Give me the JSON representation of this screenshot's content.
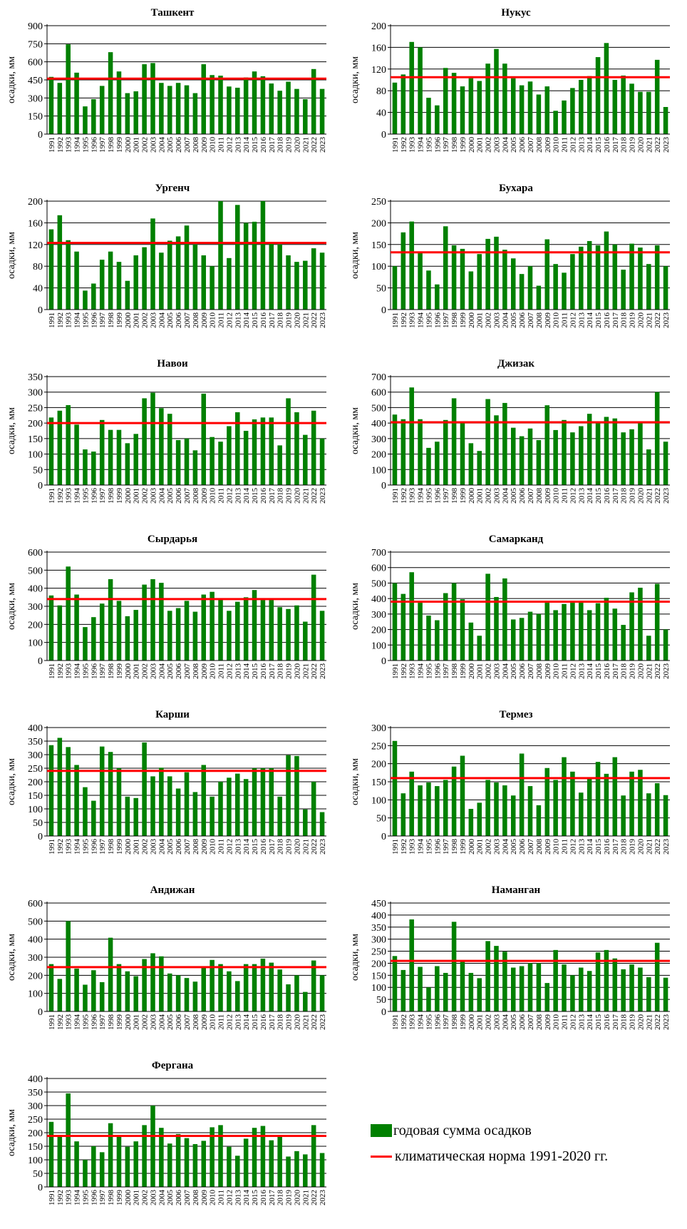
{
  "colors": {
    "bar": "#008000",
    "norm": "#ff0000",
    "grid": "#000000",
    "axis": "#000000"
  },
  "years": [
    "1991",
    "1992",
    "1993",
    "1994",
    "1995",
    "1996",
    "1997",
    "1998",
    "1999",
    "2000",
    "2001",
    "2002",
    "2003",
    "2004",
    "2005",
    "2006",
    "2007",
    "2008",
    "2009",
    "2010",
    "2011",
    "2012",
    "2013",
    "2014",
    "2015",
    "2016",
    "2017",
    "2018",
    "2019",
    "2020",
    "2021",
    "2022",
    "2023"
  ],
  "legend": {
    "bars_label": "годовая сумма осадков",
    "norm_label": "климатическая норма 1991-2020  гг."
  },
  "chart_data": [
    {
      "type": "bar",
      "title": "Ташкент",
      "ylabel": "осадки, мм",
      "ylim": [
        0,
        900
      ],
      "yticks": [
        "0",
        "150",
        "300",
        "450",
        "600",
        "750",
        "900"
      ],
      "norm": 460,
      "values": [
        475,
        425,
        745,
        510,
        230,
        290,
        400,
        680,
        520,
        340,
        355,
        580,
        590,
        425,
        400,
        425,
        405,
        340,
        580,
        490,
        485,
        395,
        385,
        470,
        520,
        480,
        420,
        360,
        435,
        375,
        290,
        540,
        375
      ]
    },
    {
      "type": "bar",
      "title": "Нукус",
      "ylabel": "осадки, мм",
      "ylim": [
        0,
        200
      ],
      "yticks": [
        "0",
        "40",
        "80",
        "120",
        "160",
        "200"
      ],
      "norm": 105,
      "values": [
        95,
        110,
        170,
        160,
        67,
        53,
        122,
        113,
        88,
        103,
        98,
        130,
        157,
        130,
        103,
        90,
        97,
        73,
        88,
        43,
        62,
        85,
        100,
        107,
        142,
        168,
        100,
        108,
        93,
        78,
        78,
        137,
        50
      ]
    },
    {
      "type": "bar",
      "title": "Ургенч",
      "ylabel": "осадки, мм",
      "ylim": [
        0,
        200
      ],
      "yticks": [
        "0",
        "40",
        "80",
        "120",
        "160",
        "200"
      ],
      "norm": 123,
      "values": [
        148,
        174,
        128,
        107,
        35,
        48,
        92,
        107,
        88,
        53,
        100,
        115,
        168,
        105,
        127,
        135,
        155,
        120,
        100,
        80,
        200,
        95,
        193,
        160,
        162,
        200,
        125,
        120,
        100,
        88,
        90,
        113,
        105
      ]
    },
    {
      "type": "bar",
      "title": "Бухара",
      "ylabel": "осадки, мм",
      "ylim": [
        0,
        250
      ],
      "yticks": [
        "0",
        "50",
        "100",
        "150",
        "200",
        "250"
      ],
      "norm": 132,
      "values": [
        100,
        178,
        203,
        130,
        90,
        58,
        192,
        148,
        140,
        88,
        128,
        163,
        168,
        138,
        118,
        82,
        100,
        55,
        162,
        105,
        85,
        128,
        145,
        158,
        148,
        180,
        150,
        92,
        152,
        143,
        105,
        148,
        100
      ]
    },
    {
      "type": "bar",
      "title": "Навои",
      "ylabel": "осадки, мм",
      "ylim": [
        0,
        350
      ],
      "yticks": [
        "0",
        "50",
        "100",
        "150",
        "200",
        "250",
        "300",
        "350"
      ],
      "norm": 200,
      "values": [
        218,
        240,
        258,
        195,
        115,
        108,
        210,
        178,
        178,
        135,
        165,
        280,
        298,
        248,
        230,
        145,
        150,
        112,
        295,
        155,
        140,
        190,
        235,
        175,
        212,
        218,
        218,
        128,
        280,
        235,
        162,
        240,
        150
      ]
    },
    {
      "type": "bar",
      "title": "Джизак",
      "ylabel": "осадки, мм",
      "ylim": [
        0,
        700
      ],
      "yticks": [
        "0",
        "100",
        "200",
        "300",
        "400",
        "500",
        "600",
        "700"
      ],
      "norm": 405,
      "values": [
        455,
        425,
        630,
        425,
        240,
        280,
        420,
        560,
        410,
        270,
        220,
        555,
        450,
        530,
        370,
        315,
        365,
        290,
        515,
        355,
        420,
        340,
        380,
        460,
        400,
        440,
        430,
        340,
        360,
        410,
        230,
        600,
        280
      ]
    },
    {
      "type": "bar",
      "title": "Сырдарья",
      "ylabel": "осадки, мм",
      "ylim": [
        0,
        600
      ],
      "yticks": [
        "0",
        "100",
        "200",
        "300",
        "400",
        "500",
        "600"
      ],
      "norm": 340,
      "values": [
        360,
        305,
        520,
        365,
        185,
        240,
        315,
        450,
        330,
        245,
        280,
        420,
        450,
        430,
        275,
        290,
        330,
        270,
        365,
        380,
        345,
        275,
        325,
        350,
        390,
        335,
        335,
        295,
        285,
        305,
        215,
        475,
        275
      ]
    },
    {
      "type": "bar",
      "title": "Самарканд",
      "ylabel": "осадки, мм",
      "ylim": [
        0,
        700
      ],
      "yticks": [
        "0",
        "100",
        "200",
        "300",
        "400",
        "500",
        "600",
        "700"
      ],
      "norm": 380,
      "values": [
        500,
        430,
        570,
        380,
        290,
        260,
        435,
        500,
        395,
        245,
        160,
        560,
        410,
        530,
        265,
        275,
        315,
        300,
        375,
        325,
        365,
        375,
        385,
        325,
        370,
        405,
        335,
        230,
        440,
        470,
        160,
        495,
        200
      ]
    },
    {
      "type": "bar",
      "title": "Карши",
      "ylabel": "осадки, мм",
      "ylim": [
        0,
        400
      ],
      "yticks": [
        "0",
        "50",
        "100",
        "150",
        "200",
        "250",
        "300",
        "350",
        "400"
      ],
      "norm": 240,
      "values": [
        335,
        362,
        328,
        262,
        180,
        130,
        330,
        310,
        250,
        145,
        140,
        345,
        220,
        252,
        220,
        175,
        235,
        162,
        262,
        145,
        200,
        215,
        230,
        210,
        250,
        250,
        250,
        145,
        298,
        295,
        98,
        200,
        88
      ]
    },
    {
      "type": "bar",
      "title": "Термез",
      "ylabel": "осадки, мм",
      "ylim": [
        0,
        300
      ],
      "yticks": [
        "0",
        "50",
        "100",
        "150",
        "200",
        "250",
        "300"
      ],
      "norm": 160,
      "values": [
        263,
        118,
        178,
        140,
        148,
        138,
        155,
        192,
        222,
        75,
        92,
        155,
        148,
        140,
        112,
        228,
        138,
        85,
        188,
        155,
        218,
        178,
        120,
        160,
        205,
        172,
        218,
        112,
        178,
        183,
        118,
        146,
        113
      ]
    },
    {
      "type": "bar",
      "title": "Андижан",
      "ylabel": "осадки, мм",
      "ylim": [
        0,
        600
      ],
      "yticks": [
        "0",
        "100",
        "200",
        "300",
        "400",
        "500",
        "600"
      ],
      "norm": 245,
      "values": [
        262,
        180,
        500,
        237,
        148,
        228,
        162,
        408,
        262,
        222,
        195,
        290,
        322,
        305,
        210,
        200,
        185,
        165,
        250,
        285,
        262,
        222,
        168,
        262,
        262,
        292,
        270,
        232,
        150,
        200,
        108,
        282,
        200
      ]
    },
    {
      "type": "bar",
      "title": "Наманган",
      "ylabel": "осадки, мм",
      "ylim": [
        0,
        450
      ],
      "yticks": [
        "0",
        "50",
        "100",
        "150",
        "200",
        "250",
        "300",
        "350",
        "400",
        "450"
      ],
      "norm": 210,
      "values": [
        230,
        172,
        382,
        185,
        100,
        188,
        160,
        372,
        208,
        160,
        138,
        292,
        272,
        248,
        182,
        188,
        200,
        200,
        118,
        255,
        195,
        150,
        182,
        168,
        245,
        255,
        220,
        175,
        195,
        182,
        142,
        285,
        140
      ]
    },
    {
      "type": "bar",
      "title": "Фергана",
      "ylabel": "осадки, мм",
      "ylim": [
        0,
        400
      ],
      "yticks": [
        "0",
        "50",
        "100",
        "150",
        "200",
        "250",
        "300",
        "350",
        "400"
      ],
      "norm": 188,
      "values": [
        240,
        185,
        345,
        168,
        100,
        150,
        128,
        235,
        185,
        148,
        168,
        228,
        300,
        218,
        160,
        195,
        180,
        158,
        170,
        220,
        228,
        148,
        115,
        178,
        218,
        225,
        172,
        190,
        112,
        132,
        120,
        228,
        125
      ]
    }
  ]
}
